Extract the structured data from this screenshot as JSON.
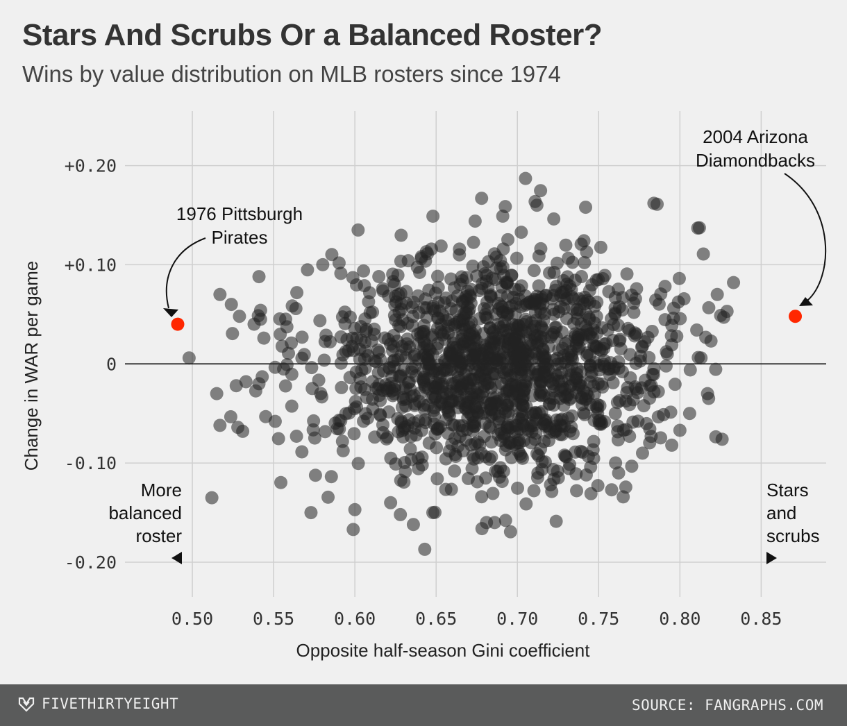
{
  "header": {
    "title": "Stars And Scrubs Or a Balanced Roster?",
    "subtitle": "Wins by value distribution on MLB rosters since 1974"
  },
  "footer": {
    "brand": "FIVETHIRTYEIGHT",
    "source": "SOURCE: FANGRAPHS.COM",
    "brand_icon": "fivethirtyeight-logo-icon"
  },
  "colors": {
    "background": "#f0f0f0",
    "dots": "#222222",
    "highlight": "#ff2700",
    "grid": "#cfcfcf",
    "footer": "#5a5b5b"
  },
  "chart_data": {
    "type": "scatter",
    "title": "Stars And Scrubs Or a Balanced Roster?",
    "subtitle": "Wins by value distribution on MLB rosters since 1974",
    "xlabel": "Opposite half-season Gini coefficient",
    "ylabel": "Change in WAR per game",
    "xlim": [
      0.45,
      0.89
    ],
    "ylim": [
      -0.235,
      0.255
    ],
    "grid": true,
    "x_ticks": [
      0.5,
      0.55,
      0.6,
      0.65,
      0.7,
      0.75,
      0.8,
      0.85
    ],
    "x_tick_labels": [
      "0.50",
      "0.55",
      "0.60",
      "0.65",
      "0.70",
      "0.75",
      "0.80",
      "0.85"
    ],
    "y_ticks": [
      0.2,
      0.1,
      0,
      -0.1,
      -0.2
    ],
    "y_tick_labels": [
      "+0.20",
      "+0.10",
      "0",
      "-0.10",
      "-0.20"
    ],
    "cluster": {
      "n": 1400,
      "x_mean": 0.688,
      "x_sd": 0.052,
      "y_mean": 0.0,
      "y_sd": 0.055,
      "x_range": [
        0.495,
        0.835
      ],
      "y_range": [
        -0.19,
        0.19
      ]
    },
    "points": [
      {
        "x": 0.705,
        "y": 0.187
      },
      {
        "x": 0.678,
        "y": 0.167
      },
      {
        "x": 0.784,
        "y": 0.162
      },
      {
        "x": 0.786,
        "y": 0.161
      },
      {
        "x": 0.712,
        "y": 0.16
      },
      {
        "x": 0.742,
        "y": 0.158
      },
      {
        "x": 0.811,
        "y": 0.137
      },
      {
        "x": 0.602,
        "y": 0.135
      },
      {
        "x": 0.674,
        "y": 0.144
      },
      {
        "x": 0.691,
        "y": 0.149
      },
      {
        "x": 0.541,
        "y": 0.088
      },
      {
        "x": 0.833,
        "y": 0.082
      },
      {
        "x": 0.517,
        "y": 0.07
      },
      {
        "x": 0.524,
        "y": 0.06
      },
      {
        "x": 0.529,
        "y": 0.048
      },
      {
        "x": 0.542,
        "y": 0.054
      },
      {
        "x": 0.538,
        "y": 0.04
      },
      {
        "x": 0.544,
        "y": 0.026
      },
      {
        "x": 0.498,
        "y": 0.006
      },
      {
        "x": 0.515,
        "y": -0.03
      },
      {
        "x": 0.517,
        "y": -0.062
      },
      {
        "x": 0.528,
        "y": -0.064
      },
      {
        "x": 0.531,
        "y": -0.068
      },
      {
        "x": 0.512,
        "y": -0.135
      },
      {
        "x": 0.533,
        "y": -0.018
      },
      {
        "x": 0.527,
        "y": -0.022
      },
      {
        "x": 0.541,
        "y": -0.02
      },
      {
        "x": 0.543,
        "y": -0.013
      },
      {
        "x": 0.551,
        "y": -0.058
      },
      {
        "x": 0.573,
        "y": -0.15
      },
      {
        "x": 0.599,
        "y": -0.167
      },
      {
        "x": 0.6,
        "y": -0.147
      },
      {
        "x": 0.643,
        "y": -0.187
      },
      {
        "x": 0.628,
        "y": -0.152
      },
      {
        "x": 0.622,
        "y": -0.14
      },
      {
        "x": 0.636,
        "y": -0.162
      },
      {
        "x": 0.648,
        "y": -0.15
      },
      {
        "x": 0.681,
        "y": -0.16
      },
      {
        "x": 0.686,
        "y": -0.16
      },
      {
        "x": 0.678,
        "y": -0.134
      },
      {
        "x": 0.758,
        "y": -0.127
      },
      {
        "x": 0.769,
        "y": -0.073
      },
      {
        "x": 0.777,
        "y": -0.09
      },
      {
        "x": 0.795,
        "y": -0.082
      },
      {
        "x": 0.817,
        "y": -0.03
      },
      {
        "x": 0.813,
        "y": 0.006
      },
      {
        "x": 0.823,
        "y": 0.07
      },
      {
        "x": 0.829,
        "y": 0.053
      },
      {
        "x": 0.827,
        "y": 0.047
      },
      {
        "x": 0.8,
        "y": -0.067
      },
      {
        "x": 0.806,
        "y": -0.05
      },
      {
        "x": 0.729,
        "y": -0.092
      }
    ],
    "highlighted_points": [
      {
        "label": "1976 Pittsburgh Pirates",
        "x": 0.491,
        "y": 0.04
      },
      {
        "label": "2004 Arizona Diamondbacks",
        "x": 0.871,
        "y": 0.048
      }
    ],
    "annotations": {
      "pirates": [
        "1976 Pittsburgh",
        "Pirates"
      ],
      "dbacks": [
        "2004 Arizona",
        "Diamondbacks"
      ],
      "left_direction": [
        "More",
        "balanced",
        "roster"
      ],
      "right_direction": [
        "Stars",
        "and",
        "scrubs"
      ]
    }
  }
}
